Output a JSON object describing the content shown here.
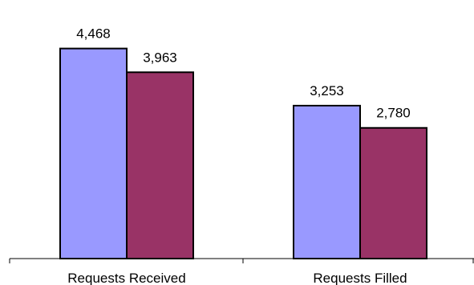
{
  "chart_data": {
    "type": "bar",
    "categories": [
      "Requests Received",
      "Requests Filled"
    ],
    "series": [
      {
        "values": [
          4468,
          3253
        ],
        "labels": [
          "4,468",
          "3,253"
        ],
        "color": "#9999ff"
      },
      {
        "values": [
          3963,
          2780
        ],
        "labels": [
          "3,963",
          "2,780"
        ],
        "color": "#993366"
      }
    ],
    "ylim": [
      0,
      5500
    ],
    "grid": false,
    "legend": "none"
  }
}
